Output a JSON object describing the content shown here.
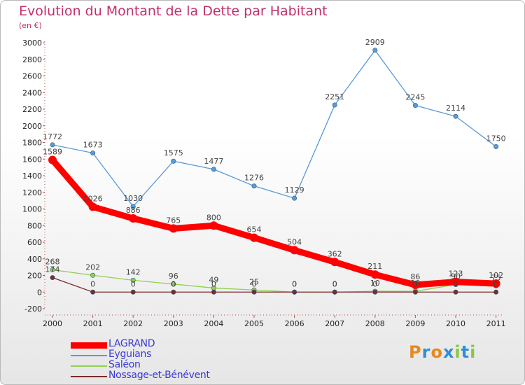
{
  "title": "Evolution du Montant de la Dette par Habitant",
  "subtitle": "(en €)",
  "logo": {
    "text": "Proxiti",
    "colors": [
      "#e8881f",
      "#2f8fd4",
      "#e8881f",
      "#2f8fd4",
      "#8dc63f",
      "#2f8fd4",
      "#8dc63f"
    ]
  },
  "chart_data": {
    "type": "line",
    "x": [
      "2000",
      "2001",
      "2002",
      "2003",
      "2004",
      "2005",
      "2006",
      "2007",
      "2008",
      "2009",
      "2010",
      "2011"
    ],
    "ylim": [
      -200,
      3000
    ],
    "yticks": [
      "-200",
      "0",
      "200",
      "400",
      "600",
      "800",
      "1000",
      "1200",
      "1400",
      "1600",
      "1800",
      "2000",
      "2200",
      "2400",
      "2600",
      "2800",
      "3000"
    ],
    "grid": false,
    "legend_position": "bottom-left",
    "series": [
      {
        "name": "LAGRAND",
        "color": "#ff0000",
        "emphasis": true,
        "values": [
          1589,
          1026,
          886,
          765,
          800,
          654,
          504,
          362,
          211,
          86,
          123,
          102
        ],
        "labels": [
          "1589",
          "1026",
          "886",
          "765",
          "800",
          "654",
          "504",
          "362",
          "211",
          "86",
          "123",
          "102"
        ]
      },
      {
        "name": "Eyguians",
        "color": "#5b9bd5",
        "values": [
          1772,
          1673,
          1030,
          1575,
          1477,
          1276,
          1129,
          2251,
          2909,
          2245,
          2114,
          1750
        ],
        "labels": [
          "1772",
          "1673",
          "1030",
          "1575",
          "1477",
          "1276",
          "1129",
          "2251",
          "2909",
          "2245",
          "2114",
          "1750"
        ]
      },
      {
        "name": "Saléon",
        "color": "#92d050",
        "values": [
          268,
          202,
          142,
          96,
          49,
          25,
          0,
          0,
          10,
          10,
          90,
          75
        ],
        "labels": [
          "268",
          "202",
          "142",
          "96",
          "49",
          "25",
          "0",
          "0",
          "10",
          "10",
          "90",
          "75"
        ]
      },
      {
        "name": "Nossage-et-Bénévent",
        "color": "#7b2c2c",
        "values": [
          174,
          0,
          0,
          0,
          0,
          0,
          0,
          0,
          0,
          0,
          0,
          0
        ],
        "labels": [
          "174",
          "0",
          "0",
          "0",
          "0",
          "0",
          "0",
          "0",
          "0",
          "0",
          "0",
          "0"
        ]
      }
    ]
  }
}
